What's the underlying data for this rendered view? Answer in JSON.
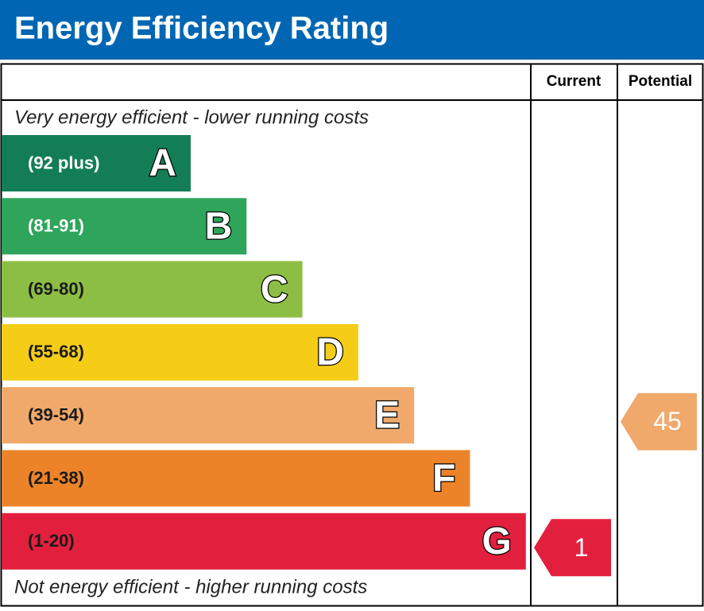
{
  "header": {
    "title": "Energy Efficiency Rating",
    "color": "#0066b3"
  },
  "columns": {
    "current": "Current",
    "potential": "Potential"
  },
  "top_note": "Very energy efficient - lower running costs",
  "bottom_note": "Not energy efficient - higher running costs",
  "bands": [
    {
      "range": "(92 plus)",
      "letter": "A",
      "color": "#137e55",
      "text_color": "#ffffff"
    },
    {
      "range": "(81-91)",
      "letter": "B",
      "color": "#2ea55b",
      "text_color": "#ffffff"
    },
    {
      "range": "(69-80)",
      "letter": "C",
      "color": "#8dbe44",
      "text_color": "#1a1a1a"
    },
    {
      "range": "(55-68)",
      "letter": "D",
      "color": "#f5cd17",
      "text_color": "#1a1a1a"
    },
    {
      "range": "(39-54)",
      "letter": "E",
      "color": "#f0a96b",
      "text_color": "#1a1a1a"
    },
    {
      "range": "(21-38)",
      "letter": "F",
      "color": "#ec8329",
      "text_color": "#1a1a1a"
    },
    {
      "range": "(1-20)",
      "letter": "G",
      "color": "#e2203d",
      "text_color": "#1a1a1a"
    }
  ],
  "current": {
    "value": 1
  },
  "potential": {
    "value": 45
  }
}
